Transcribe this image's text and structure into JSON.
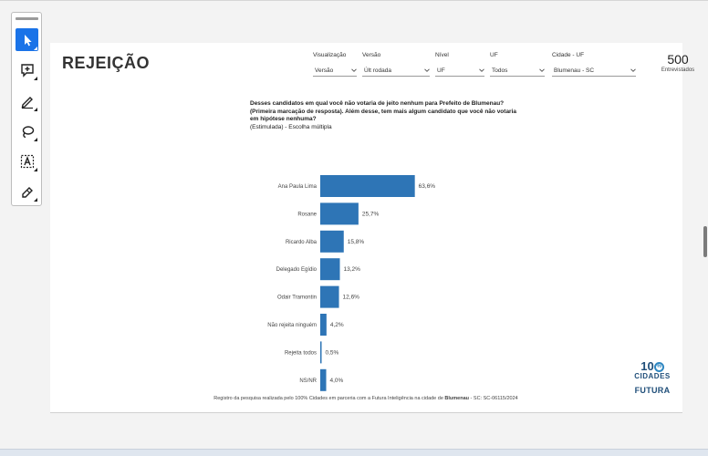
{
  "page": {
    "title": "REJEIÇÃO"
  },
  "filters": [
    {
      "label": "Visualização",
      "value": "Versão"
    },
    {
      "label": "Versão",
      "value": "Últ rodada"
    },
    {
      "label": "Nível",
      "value": "UF"
    },
    {
      "label": "UF",
      "value": "Todos"
    },
    {
      "label": "Cidade - UF",
      "value": "Blumenau - SC"
    }
  ],
  "respondents": {
    "count": "500",
    "label": "Entrevistados"
  },
  "question": {
    "text": "Desses candidatos em qual você não votaria de jeito nenhum para Prefeito de Blumenau? (Primeira marcação de resposta). Além desse, tem mais algum candidato que você não votaria em hipótese nenhuma?",
    "sub": "(Estimulada) - Escolha múltipla"
  },
  "chart_data": {
    "type": "bar",
    "orientation": "horizontal",
    "categories": [
      "Ana Paula Lima",
      "Rosane",
      "Ricardo Alba",
      "Delegado Egídio",
      "Odair Tramontin",
      "Não rejeita ninguém",
      "Rejeita todos",
      "NS/NR"
    ],
    "values": [
      63.6,
      25.7,
      15.8,
      13.2,
      12.6,
      4.2,
      0.5,
      4.0
    ],
    "data_labels": [
      "63,6%",
      "25,7%",
      "15,8%",
      "13,2%",
      "12,6%",
      "4,2%",
      "0,5%",
      "4,0%"
    ],
    "xlim": [
      0,
      100
    ],
    "grid": false,
    "bar_color": "#2e75b6"
  },
  "footer": {
    "pre": "Registro da pesquisa realizada pelo 100% Cidades em parceria com a Futura Inteligência na cidade de ",
    "city": "Blumenau",
    "post": " - SC: SC-06115/2024"
  },
  "logo": {
    "hundred": "10",
    "pct": "%",
    "cidades": "CIDADES",
    "futura": "FUTURA"
  },
  "colors": {
    "accent": "#1a73e8",
    "bar": "#2e75b6",
    "brand": "#1f4e79"
  },
  "tools": [
    {
      "name": "select-tool",
      "icon": "cursor-arrow-icon"
    },
    {
      "name": "comment-tool",
      "icon": "comment-add-icon"
    },
    {
      "name": "pen-tool",
      "icon": "pen-icon"
    },
    {
      "name": "lasso-tool",
      "icon": "lasso-icon"
    },
    {
      "name": "text-box-tool",
      "icon": "text-box-icon"
    },
    {
      "name": "eraser-tool",
      "icon": "eraser-pen-icon"
    }
  ]
}
